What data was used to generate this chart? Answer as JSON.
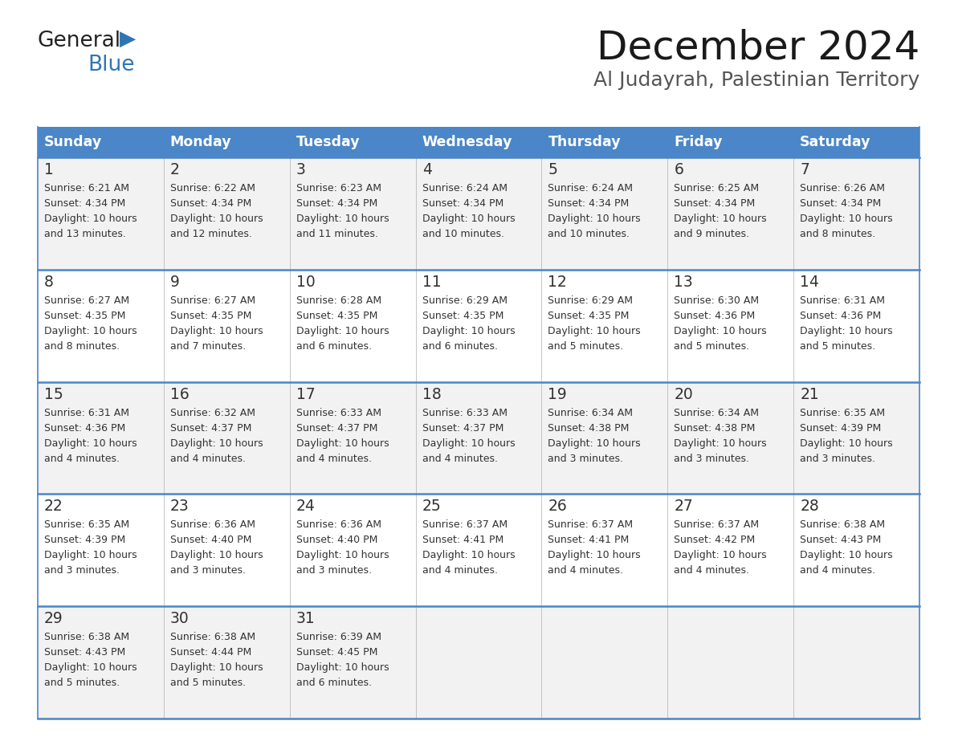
{
  "title": "December 2024",
  "subtitle": "Al Judayrah, Palestinian Territory",
  "header_bg_color": "#4a86c8",
  "header_text_color": "#FFFFFF",
  "row_bg_odd": "#f2f2f2",
  "row_bg_even": "#ffffff",
  "border_color": "#4a86c8",
  "separator_color": "#c0c0c0",
  "text_color": "#333333",
  "days_of_week": [
    "Sunday",
    "Monday",
    "Tuesday",
    "Wednesday",
    "Thursday",
    "Friday",
    "Saturday"
  ],
  "calendar_data": [
    [
      {
        "day": "1",
        "sunrise": "6:21 AM",
        "sunset": "4:34 PM",
        "daylight_h": "10 hours",
        "daylight_m": "and 13 minutes."
      },
      {
        "day": "2",
        "sunrise": "6:22 AM",
        "sunset": "4:34 PM",
        "daylight_h": "10 hours",
        "daylight_m": "and 12 minutes."
      },
      {
        "day": "3",
        "sunrise": "6:23 AM",
        "sunset": "4:34 PM",
        "daylight_h": "10 hours",
        "daylight_m": "and 11 minutes."
      },
      {
        "day": "4",
        "sunrise": "6:24 AM",
        "sunset": "4:34 PM",
        "daylight_h": "10 hours",
        "daylight_m": "and 10 minutes."
      },
      {
        "day": "5",
        "sunrise": "6:24 AM",
        "sunset": "4:34 PM",
        "daylight_h": "10 hours",
        "daylight_m": "and 10 minutes."
      },
      {
        "day": "6",
        "sunrise": "6:25 AM",
        "sunset": "4:34 PM",
        "daylight_h": "10 hours",
        "daylight_m": "and 9 minutes."
      },
      {
        "day": "7",
        "sunrise": "6:26 AM",
        "sunset": "4:34 PM",
        "daylight_h": "10 hours",
        "daylight_m": "and 8 minutes."
      }
    ],
    [
      {
        "day": "8",
        "sunrise": "6:27 AM",
        "sunset": "4:35 PM",
        "daylight_h": "10 hours",
        "daylight_m": "and 8 minutes."
      },
      {
        "day": "9",
        "sunrise": "6:27 AM",
        "sunset": "4:35 PM",
        "daylight_h": "10 hours",
        "daylight_m": "and 7 minutes."
      },
      {
        "day": "10",
        "sunrise": "6:28 AM",
        "sunset": "4:35 PM",
        "daylight_h": "10 hours",
        "daylight_m": "and 6 minutes."
      },
      {
        "day": "11",
        "sunrise": "6:29 AM",
        "sunset": "4:35 PM",
        "daylight_h": "10 hours",
        "daylight_m": "and 6 minutes."
      },
      {
        "day": "12",
        "sunrise": "6:29 AM",
        "sunset": "4:35 PM",
        "daylight_h": "10 hours",
        "daylight_m": "and 5 minutes."
      },
      {
        "day": "13",
        "sunrise": "6:30 AM",
        "sunset": "4:36 PM",
        "daylight_h": "10 hours",
        "daylight_m": "and 5 minutes."
      },
      {
        "day": "14",
        "sunrise": "6:31 AM",
        "sunset": "4:36 PM",
        "daylight_h": "10 hours",
        "daylight_m": "and 5 minutes."
      }
    ],
    [
      {
        "day": "15",
        "sunrise": "6:31 AM",
        "sunset": "4:36 PM",
        "daylight_h": "10 hours",
        "daylight_m": "and 4 minutes."
      },
      {
        "day": "16",
        "sunrise": "6:32 AM",
        "sunset": "4:37 PM",
        "daylight_h": "10 hours",
        "daylight_m": "and 4 minutes."
      },
      {
        "day": "17",
        "sunrise": "6:33 AM",
        "sunset": "4:37 PM",
        "daylight_h": "10 hours",
        "daylight_m": "and 4 minutes."
      },
      {
        "day": "18",
        "sunrise": "6:33 AM",
        "sunset": "4:37 PM",
        "daylight_h": "10 hours",
        "daylight_m": "and 4 minutes."
      },
      {
        "day": "19",
        "sunrise": "6:34 AM",
        "sunset": "4:38 PM",
        "daylight_h": "10 hours",
        "daylight_m": "and 3 minutes."
      },
      {
        "day": "20",
        "sunrise": "6:34 AM",
        "sunset": "4:38 PM",
        "daylight_h": "10 hours",
        "daylight_m": "and 3 minutes."
      },
      {
        "day": "21",
        "sunrise": "6:35 AM",
        "sunset": "4:39 PM",
        "daylight_h": "10 hours",
        "daylight_m": "and 3 minutes."
      }
    ],
    [
      {
        "day": "22",
        "sunrise": "6:35 AM",
        "sunset": "4:39 PM",
        "daylight_h": "10 hours",
        "daylight_m": "and 3 minutes."
      },
      {
        "day": "23",
        "sunrise": "6:36 AM",
        "sunset": "4:40 PM",
        "daylight_h": "10 hours",
        "daylight_m": "and 3 minutes."
      },
      {
        "day": "24",
        "sunrise": "6:36 AM",
        "sunset": "4:40 PM",
        "daylight_h": "10 hours",
        "daylight_m": "and 3 minutes."
      },
      {
        "day": "25",
        "sunrise": "6:37 AM",
        "sunset": "4:41 PM",
        "daylight_h": "10 hours",
        "daylight_m": "and 4 minutes."
      },
      {
        "day": "26",
        "sunrise": "6:37 AM",
        "sunset": "4:41 PM",
        "daylight_h": "10 hours",
        "daylight_m": "and 4 minutes."
      },
      {
        "day": "27",
        "sunrise": "6:37 AM",
        "sunset": "4:42 PM",
        "daylight_h": "10 hours",
        "daylight_m": "and 4 minutes."
      },
      {
        "day": "28",
        "sunrise": "6:38 AM",
        "sunset": "4:43 PM",
        "daylight_h": "10 hours",
        "daylight_m": "and 4 minutes."
      }
    ],
    [
      {
        "day": "29",
        "sunrise": "6:38 AM",
        "sunset": "4:43 PM",
        "daylight_h": "10 hours",
        "daylight_m": "and 5 minutes."
      },
      {
        "day": "30",
        "sunrise": "6:38 AM",
        "sunset": "4:44 PM",
        "daylight_h": "10 hours",
        "daylight_m": "and 5 minutes."
      },
      {
        "day": "31",
        "sunrise": "6:39 AM",
        "sunset": "4:45 PM",
        "daylight_h": "10 hours",
        "daylight_m": "and 6 minutes."
      },
      null,
      null,
      null,
      null
    ]
  ],
  "logo_general_color": "#222222",
  "logo_blue_color": "#2E75B6",
  "logo_triangle_color": "#2E75B6"
}
